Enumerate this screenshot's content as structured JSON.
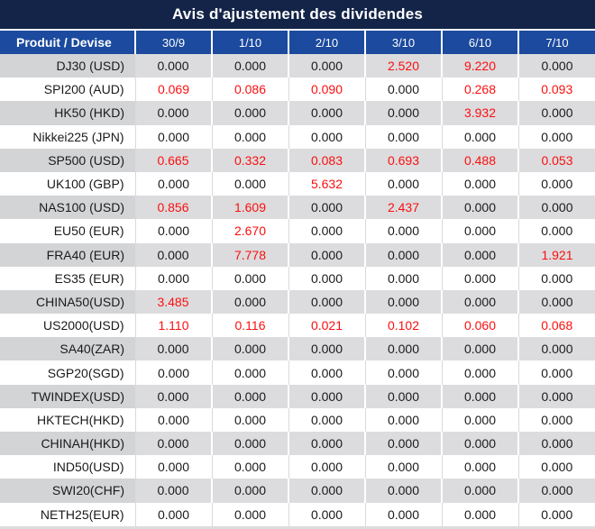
{
  "title": "Avis d'ajustement des dividendes",
  "colors": {
    "title_bg": "#132448",
    "header_bg": "#1b4a9e",
    "row_gray": "#dcdcde",
    "row_gray_product": "#d2d4d6",
    "negative_red": "#fb0f0f",
    "text": "#1a1a1a"
  },
  "table": {
    "product_header": "Produit / Devise",
    "columns": [
      "30/9",
      "1/10",
      "2/10",
      "3/10",
      "6/10",
      "7/10"
    ],
    "rows": [
      {
        "product": "DJ30 (USD)",
        "values": [
          "0.000",
          "0.000",
          "0.000",
          "2.520",
          "9.220",
          "0.000"
        ],
        "red": [
          false,
          false,
          false,
          true,
          true,
          false
        ]
      },
      {
        "product": "SPI200 (AUD)",
        "values": [
          "0.069",
          "0.086",
          "0.090",
          "0.000",
          "0.268",
          "0.093"
        ],
        "red": [
          true,
          true,
          true,
          false,
          true,
          true
        ]
      },
      {
        "product": "HK50 (HKD)",
        "values": [
          "0.000",
          "0.000",
          "0.000",
          "0.000",
          "3.932",
          "0.000"
        ],
        "red": [
          false,
          false,
          false,
          false,
          true,
          false
        ]
      },
      {
        "product": "Nikkei225 (JPN)",
        "values": [
          "0.000",
          "0.000",
          "0.000",
          "0.000",
          "0.000",
          "0.000"
        ],
        "red": [
          false,
          false,
          false,
          false,
          false,
          false
        ]
      },
      {
        "product": "SP500 (USD)",
        "values": [
          "0.665",
          "0.332",
          "0.083",
          "0.693",
          "0.488",
          "0.053"
        ],
        "red": [
          true,
          true,
          true,
          true,
          true,
          true
        ]
      },
      {
        "product": "UK100 (GBP)",
        "values": [
          "0.000",
          "0.000",
          "5.632",
          "0.000",
          "0.000",
          "0.000"
        ],
        "red": [
          false,
          false,
          true,
          false,
          false,
          false
        ]
      },
      {
        "product": "NAS100 (USD)",
        "values": [
          "0.856",
          "1.609",
          "0.000",
          "2.437",
          "0.000",
          "0.000"
        ],
        "red": [
          true,
          true,
          false,
          true,
          false,
          false
        ]
      },
      {
        "product": "EU50 (EUR)",
        "values": [
          "0.000",
          "2.670",
          "0.000",
          "0.000",
          "0.000",
          "0.000"
        ],
        "red": [
          false,
          true,
          false,
          false,
          false,
          false
        ]
      },
      {
        "product": "FRA40 (EUR)",
        "values": [
          "0.000",
          "7.778",
          "0.000",
          "0.000",
          "0.000",
          "1.921"
        ],
        "red": [
          false,
          true,
          false,
          false,
          false,
          true
        ]
      },
      {
        "product": "ES35 (EUR)",
        "values": [
          "0.000",
          "0.000",
          "0.000",
          "0.000",
          "0.000",
          "0.000"
        ],
        "red": [
          false,
          false,
          false,
          false,
          false,
          false
        ]
      },
      {
        "product": "CHINA50(USD)",
        "values": [
          "3.485",
          "0.000",
          "0.000",
          "0.000",
          "0.000",
          "0.000"
        ],
        "red": [
          true,
          false,
          false,
          false,
          false,
          false
        ]
      },
      {
        "product": "US2000(USD)",
        "values": [
          "1.110",
          "0.116",
          "0.021",
          "0.102",
          "0.060",
          "0.068"
        ],
        "red": [
          true,
          true,
          true,
          true,
          true,
          true
        ]
      },
      {
        "product": "SA40(ZAR)",
        "values": [
          "0.000",
          "0.000",
          "0.000",
          "0.000",
          "0.000",
          "0.000"
        ],
        "red": [
          false,
          false,
          false,
          false,
          false,
          false
        ]
      },
      {
        "product": "SGP20(SGD)",
        "values": [
          "0.000",
          "0.000",
          "0.000",
          "0.000",
          "0.000",
          "0.000"
        ],
        "red": [
          false,
          false,
          false,
          false,
          false,
          false
        ]
      },
      {
        "product": "TWINDEX(USD)",
        "values": [
          "0.000",
          "0.000",
          "0.000",
          "0.000",
          "0.000",
          "0.000"
        ],
        "red": [
          false,
          false,
          false,
          false,
          false,
          false
        ]
      },
      {
        "product": "HKTECH(HKD)",
        "values": [
          "0.000",
          "0.000",
          "0.000",
          "0.000",
          "0.000",
          "0.000"
        ],
        "red": [
          false,
          false,
          false,
          false,
          false,
          false
        ]
      },
      {
        "product": "CHINAH(HKD)",
        "values": [
          "0.000",
          "0.000",
          "0.000",
          "0.000",
          "0.000",
          "0.000"
        ],
        "red": [
          false,
          false,
          false,
          false,
          false,
          false
        ]
      },
      {
        "product": "IND50(USD)",
        "values": [
          "0.000",
          "0.000",
          "0.000",
          "0.000",
          "0.000",
          "0.000"
        ],
        "red": [
          false,
          false,
          false,
          false,
          false,
          false
        ]
      },
      {
        "product": "SWI20(CHF)",
        "values": [
          "0.000",
          "0.000",
          "0.000",
          "0.000",
          "0.000",
          "0.000"
        ],
        "red": [
          false,
          false,
          false,
          false,
          false,
          false
        ]
      },
      {
        "product": "NETH25(EUR)",
        "values": [
          "0.000",
          "0.000",
          "0.000",
          "0.000",
          "0.000",
          "0.000"
        ],
        "red": [
          false,
          false,
          false,
          false,
          false,
          false
        ]
      }
    ]
  }
}
